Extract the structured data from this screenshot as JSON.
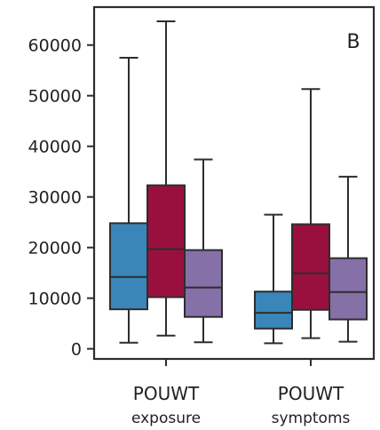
{
  "panel_label": "B",
  "colors": {
    "series": [
      "#3a86b8",
      "#99103f",
      "#8570a8"
    ],
    "line": "#2d2d2d"
  },
  "chart_data": {
    "type": "box",
    "categories": [
      {
        "line1": "POUWT",
        "line2": "exposure"
      },
      {
        "line1": "POUWT",
        "line2": "symptoms"
      }
    ],
    "series": [
      {
        "boxes": [
          {
            "min": 1200,
            "q1": 7800,
            "median": 14200,
            "q3": 24800,
            "max": 57500
          },
          {
            "min": 1100,
            "q1": 4000,
            "median": 7100,
            "q3": 11300,
            "max": 26500
          }
        ]
      },
      {
        "boxes": [
          {
            "min": 2600,
            "q1": 10200,
            "median": 19700,
            "q3": 32300,
            "max": 64700
          },
          {
            "min": 2100,
            "q1": 7700,
            "median": 14900,
            "q3": 24600,
            "max": 51300
          }
        ]
      },
      {
        "boxes": [
          {
            "min": 1300,
            "q1": 6300,
            "median": 12100,
            "q3": 19500,
            "max": 37400
          },
          {
            "min": 1400,
            "q1": 5800,
            "median": 11200,
            "q3": 17900,
            "max": 34000
          }
        ]
      }
    ],
    "yticks": [
      0,
      10000,
      20000,
      30000,
      40000,
      50000,
      60000
    ],
    "ytick_labels": [
      "0",
      "10000",
      "20000",
      "30000",
      "40000",
      "50000",
      "60000"
    ],
    "ylim": [
      -2000,
      67500
    ],
    "grid": false
  }
}
